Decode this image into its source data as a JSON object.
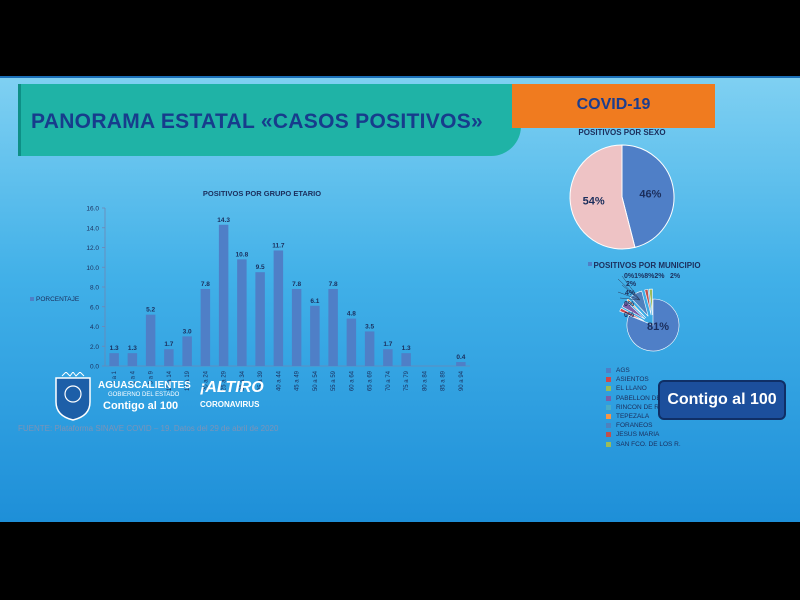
{
  "header": {
    "title": "PANORAMA ESTATAL «CASOS POSITIVOS»",
    "covid_label": "COVID-19"
  },
  "chart_data": [
    {
      "type": "bar",
      "title": "POSITIVOS POR GRUPO ETARIO",
      "series_label": "PORCENTAJE",
      "categories": [
        "< a 1",
        "1 a 4",
        "5 a 9",
        "10 a 14",
        "15 a 19",
        "20 a 24",
        "25 a 29",
        "30 a 34",
        "35 a 39",
        "40 a 44",
        "45 a 49",
        "50 a 54",
        "55 a 59",
        "60 a 64",
        "65 a 69",
        "70 a 74",
        "75 a 79",
        "80 a 84",
        "85 a 89",
        "90 a 94"
      ],
      "values": [
        1.3,
        1.3,
        5.2,
        1.7,
        3.0,
        7.8,
        14.3,
        10.8,
        9.5,
        11.7,
        7.8,
        6.1,
        7.8,
        4.8,
        3.5,
        1.7,
        1.3,
        null,
        null,
        0.4
      ],
      "value_labels": [
        "1.3",
        "1.3",
        "5.2",
        "1.7",
        "3.0",
        "7.8",
        "14.3",
        "10.8",
        "9.5",
        "11.7",
        "7.8",
        "6.1",
        "7.8",
        "4.8",
        "3.5",
        "1.7",
        "1.3",
        "",
        "",
        "0.4"
      ],
      "ylim": [
        0,
        16
      ],
      "yticks": [
        "0.0",
        "2.0",
        "4.0",
        "6.0",
        "8.0",
        "10.0",
        "12.0",
        "14.0",
        "16.0"
      ],
      "bar_color": "#4f7fc7"
    },
    {
      "type": "pie",
      "title": "POSITIVOS POR SEXO",
      "slices": [
        {
          "label": "46%",
          "value": 46,
          "color": "#4f7fc7"
        },
        {
          "label": "54%",
          "value": 54,
          "color": "#eec3c5"
        }
      ]
    },
    {
      "type": "pie",
      "title": "POSITIVOS POR MUNICIPIO",
      "main_label": "81%",
      "small_labels": [
        "2%",
        "4%",
        "0%",
        "0%",
        "0%1%8%2%",
        "2%"
      ],
      "slices": [
        {
          "label": "AGS",
          "value": 81,
          "color": "#4f7fc7"
        },
        {
          "label": "ASIENTOS",
          "value": 2,
          "color": "#d0474a"
        },
        {
          "label": "EL LLANO",
          "value": 0,
          "color": "#9bbb59"
        },
        {
          "label": "PABELLON DE ARTEGA",
          "value": 4,
          "color": "#7b5ea7"
        },
        {
          "label": "RINCON DE ROMOS",
          "value": 0,
          "color": "#4bacc6"
        },
        {
          "label": "TEPEZALA",
          "value": 1,
          "color": "#f79646"
        },
        {
          "label": "FORANEOS",
          "value": 8,
          "color": "#4f81bd"
        },
        {
          "label": "JESUS MARIA",
          "value": 2,
          "color": "#c0504d"
        },
        {
          "label": "SAN FCO. DE LOS R.",
          "value": 2,
          "color": "#9bbb59"
        }
      ]
    }
  ],
  "footer": {
    "source": "FUENTE: Plataforma SINAVE COVID – 19. Datos del 29 de abril de 2020",
    "ags_line1": "AGUASCALIENTES",
    "ags_line2": "GOBIERNO DEL ESTADO",
    "ags_line3": "Contigo al 100",
    "altiro_line1": "¡ALTIRO",
    "altiro_line2": "CORONAVIRUS",
    "badge": "Contigo al 100"
  }
}
